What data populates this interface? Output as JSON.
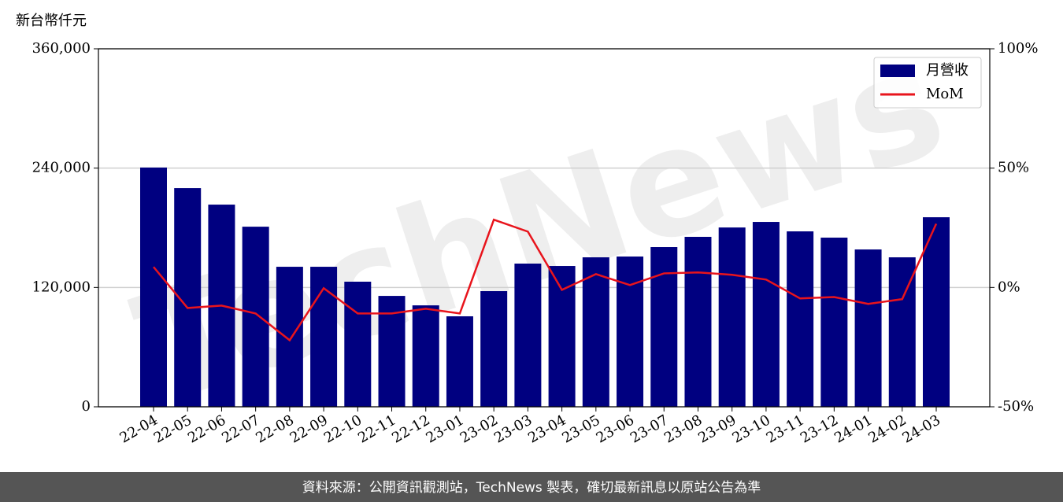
{
  "chart_data": {
    "type": "bar-line",
    "y_label": "新台幣仟元",
    "watermark": "TechNews",
    "footer": "資料來源：公開資訊觀測站，TechNews 製表，確切最新訊息以原站公告為準",
    "categories": [
      "22-04",
      "22-05",
      "22-06",
      "22-07",
      "22-08",
      "22-09",
      "22-10",
      "22-11",
      "22-12",
      "23-01",
      "23-02",
      "23-03",
      "23-04",
      "23-05",
      "23-06",
      "23-07",
      "23-08",
      "23-09",
      "23-10",
      "23-11",
      "23-12",
      "24-01",
      "24-02",
      "24-03"
    ],
    "series": [
      {
        "name": "月營收",
        "color": "#000080",
        "type": "bar",
        "axis": "y",
        "values": [
          240600,
          219900,
          203300,
          181100,
          140800,
          140800,
          125800,
          111500,
          102000,
          91000,
          116300,
          144000,
          141600,
          150300,
          151100,
          160600,
          170900,
          180300,
          185900,
          176400,
          170100,
          158200,
          150300,
          190600
        ]
      },
      {
        "name": "MoM",
        "color": "#e8141c",
        "type": "line",
        "axis": "y2",
        "values": [
          8.6,
          -8.6,
          -7.6,
          -10.9,
          -22.1,
          -0.3,
          -10.9,
          -10.9,
          -8.9,
          -10.9,
          28.4,
          23.4,
          -1.0,
          5.6,
          1.0,
          5.9,
          6.3,
          5.3,
          3.3,
          -4.6,
          -4.0,
          -6.9,
          -4.9,
          26.7
        ]
      }
    ],
    "ylim": [
      0,
      360000
    ],
    "yticks": [
      0,
      {
        "value": 120000,
        "label": "120,000"
      },
      {
        "value": 240000,
        "label": "240,000"
      },
      {
        "value": 360000,
        "label": "360,000"
      }
    ],
    "y2lim": [
      -50,
      100
    ],
    "y2ticks": [
      {
        "value": -50,
        "label": "-50%"
      },
      {
        "value": 0,
        "label": "0%"
      },
      {
        "value": 50,
        "label": "50%"
      },
      {
        "value": 100,
        "label": "100%"
      }
    ],
    "grid": true,
    "legend": "upper right"
  }
}
